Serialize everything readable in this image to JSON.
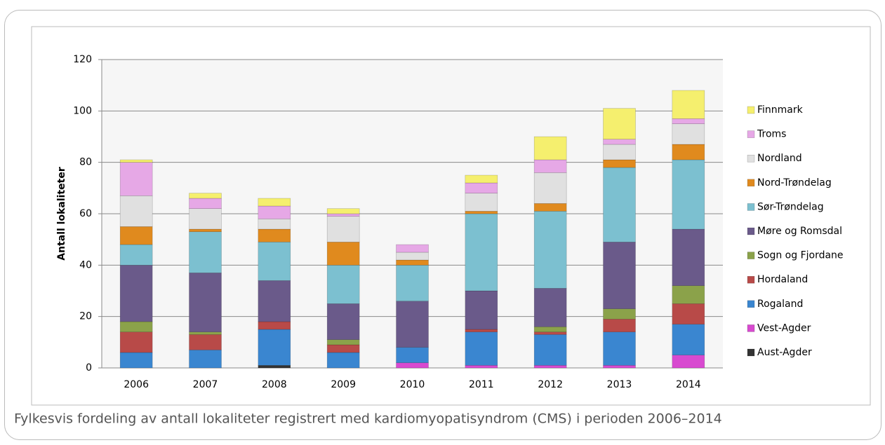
{
  "chart_data": {
    "type": "stacked-bar",
    "y_label": "Antall lokaliteter",
    "caption": "Fylkesvis fordeling av antall lokaliteter registrert med kardiomyopatisyndrom (CMS) i perioden 2006–2014",
    "categories": [
      "2006",
      "2007",
      "2008",
      "2009",
      "2010",
      "2011",
      "2012",
      "2013",
      "2014"
    ],
    "ylim": [
      0,
      120
    ],
    "yticks": [
      0,
      20,
      40,
      60,
      80,
      100,
      120
    ],
    "grid": true,
    "legend": "right",
    "series": [
      {
        "name": "Aust-Agder",
        "color": "#333333",
        "values": [
          0,
          0,
          1,
          0,
          0,
          0,
          0,
          0,
          0
        ]
      },
      {
        "name": "Vest-Agder",
        "color": "#d84ad0",
        "values": [
          0,
          0,
          0,
          0,
          2,
          1,
          1,
          1,
          5
        ]
      },
      {
        "name": "Rogaland",
        "color": "#3a86d0",
        "values": [
          6,
          7,
          14,
          6,
          6,
          13,
          12,
          13,
          12
        ]
      },
      {
        "name": "Hordaland",
        "color": "#b84a48",
        "values": [
          8,
          6,
          3,
          3,
          0,
          1,
          1,
          5,
          8
        ]
      },
      {
        "name": "Sogn og Fjordane",
        "color": "#8ba24a",
        "values": [
          4,
          1,
          0,
          2,
          0,
          0,
          2,
          4,
          7
        ]
      },
      {
        "name": "Møre og Romsdal",
        "color": "#6a5a8a",
        "values": [
          22,
          23,
          16,
          14,
          18,
          15,
          15,
          26,
          22
        ]
      },
      {
        "name": "Sør-Trøndelag",
        "color": "#7cc0d0",
        "values": [
          8,
          16,
          15,
          15,
          14,
          30,
          30,
          29,
          27
        ]
      },
      {
        "name": "Nord-Trøndelag",
        "color": "#e08a1e",
        "values": [
          7,
          1,
          5,
          9,
          2,
          1,
          3,
          3,
          6
        ]
      },
      {
        "name": "Nordland",
        "color": "#e0e0e0",
        "values": [
          12,
          8,
          4,
          10,
          3,
          7,
          12,
          6,
          8
        ]
      },
      {
        "name": "Troms",
        "color": "#e6a8e6",
        "values": [
          13,
          4,
          5,
          1,
          3,
          4,
          5,
          2,
          2
        ]
      },
      {
        "name": "Finnmark",
        "color": "#f5ef6e",
        "values": [
          1,
          2,
          3,
          2,
          0,
          3,
          9,
          12,
          11
        ]
      }
    ]
  }
}
